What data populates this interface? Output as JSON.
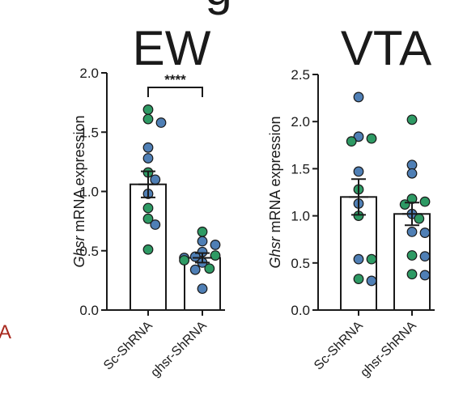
{
  "figure": {
    "top_fragment": "g",
    "left_fragment": "A"
  },
  "colors": {
    "blue": "#4f7fb5",
    "green": "#2e9a64",
    "bar_fill": "#ffffff",
    "bar_stroke": "#1a1a1a",
    "fragment_red": "#a8281e"
  },
  "chart_data": [
    {
      "type": "bar",
      "title": "EW",
      "ylabel_italic": "Ghsr",
      "ylabel_rest": " mRNA expression",
      "ylim": [
        0,
        2.0
      ],
      "yticks": [
        "0.0",
        "0.5",
        "1.0",
        "1.5",
        "2.0"
      ],
      "categories": [
        "Sc-ShRNA",
        "ghsr-ShRNA"
      ],
      "means": [
        1.06,
        0.44
      ],
      "sem": [
        0.11,
        0.04
      ],
      "significance": "****",
      "points": [
        [
          {
            "y": 1.69,
            "color": "green"
          },
          {
            "y": 1.61,
            "color": "green"
          },
          {
            "y": 1.58,
            "color": "blue"
          },
          {
            "y": 1.37,
            "color": "blue"
          },
          {
            "y": 1.28,
            "color": "blue"
          },
          {
            "y": 1.16,
            "color": "green"
          },
          {
            "y": 1.1,
            "color": "blue"
          },
          {
            "y": 0.98,
            "color": "blue"
          },
          {
            "y": 0.86,
            "color": "green"
          },
          {
            "y": 0.77,
            "color": "green"
          },
          {
            "y": 0.72,
            "color": "blue"
          },
          {
            "y": 0.51,
            "color": "green"
          }
        ],
        [
          {
            "y": 0.66,
            "color": "green"
          },
          {
            "y": 0.58,
            "color": "blue"
          },
          {
            "y": 0.55,
            "color": "blue"
          },
          {
            "y": 0.49,
            "color": "blue"
          },
          {
            "y": 0.46,
            "color": "green"
          },
          {
            "y": 0.45,
            "color": "blue"
          },
          {
            "y": 0.44,
            "color": "blue"
          },
          {
            "y": 0.42,
            "color": "green"
          },
          {
            "y": 0.4,
            "color": "blue"
          },
          {
            "y": 0.35,
            "color": "green"
          },
          {
            "y": 0.34,
            "color": "blue"
          },
          {
            "y": 0.18,
            "color": "blue"
          }
        ]
      ]
    },
    {
      "type": "bar",
      "title": "VTA",
      "ylabel_italic": "Ghsr",
      "ylabel_rest": " mRNA expression",
      "ylim": [
        0,
        2.5
      ],
      "yticks": [
        "0.0",
        "0.5",
        "1.0",
        "1.5",
        "2.0",
        "2.5"
      ],
      "categories": [
        "Sc-ShRNA",
        "ghsr-ShRNA"
      ],
      "means": [
        1.2,
        1.02
      ],
      "sem": [
        0.19,
        0.12
      ],
      "significance": "",
      "points": [
        [
          {
            "y": 2.26,
            "color": "blue"
          },
          {
            "y": 1.84,
            "color": "blue"
          },
          {
            "y": 1.82,
            "color": "green"
          },
          {
            "y": 1.79,
            "color": "green"
          },
          {
            "y": 1.47,
            "color": "blue"
          },
          {
            "y": 1.28,
            "color": "green"
          },
          {
            "y": 1.13,
            "color": "blue"
          },
          {
            "y": 1.0,
            "color": "green"
          },
          {
            "y": 0.54,
            "color": "blue"
          },
          {
            "y": 0.54,
            "color": "green"
          },
          {
            "y": 0.33,
            "color": "green"
          },
          {
            "y": 0.31,
            "color": "blue"
          }
        ],
        [
          {
            "y": 2.02,
            "color": "green"
          },
          {
            "y": 1.54,
            "color": "blue"
          },
          {
            "y": 1.45,
            "color": "blue"
          },
          {
            "y": 1.18,
            "color": "green"
          },
          {
            "y": 1.15,
            "color": "green"
          },
          {
            "y": 1.12,
            "color": "green"
          },
          {
            "y": 1.02,
            "color": "blue"
          },
          {
            "y": 0.97,
            "color": "green"
          },
          {
            "y": 0.83,
            "color": "blue"
          },
          {
            "y": 0.82,
            "color": "blue"
          },
          {
            "y": 0.58,
            "color": "green"
          },
          {
            "y": 0.57,
            "color": "blue"
          },
          {
            "y": 0.38,
            "color": "green"
          },
          {
            "y": 0.37,
            "color": "blue"
          }
        ]
      ]
    }
  ]
}
